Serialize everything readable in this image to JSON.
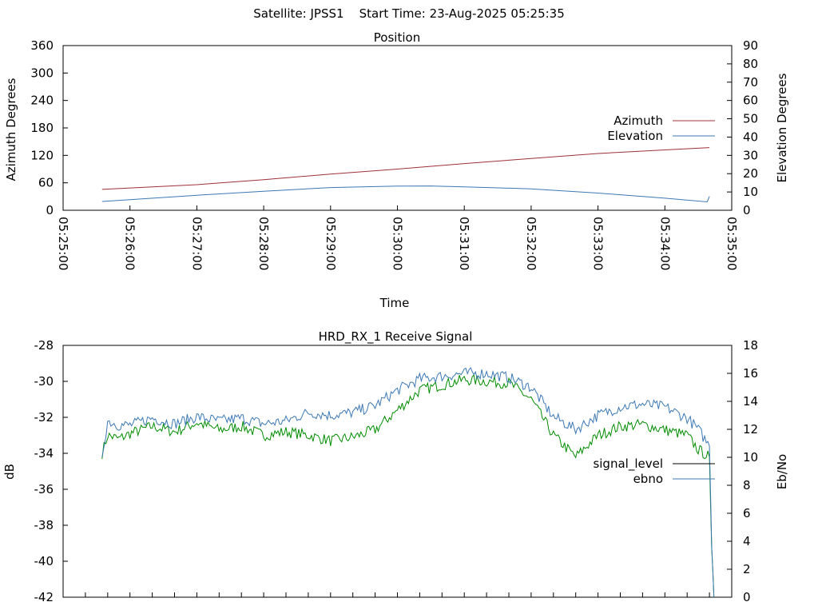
{
  "header": {
    "satellite_label": "Satellite: JPSS1",
    "start_label": "Start Time: 23-Aug-2025 05:25:35"
  },
  "colors": {
    "azimuth": "#a0303a",
    "elevation": "#3c78b4",
    "signal_level": "#008c00",
    "ebno": "#3c78b4"
  },
  "chart_data": [
    {
      "type": "line",
      "title": "Position",
      "xlabel": "Time",
      "ylabel": "Azimuth Degrees",
      "y2label": "Elevation Degrees",
      "xlim": [
        "05:25:00",
        "05:35:00"
      ],
      "ylim": [
        0,
        360
      ],
      "y2lim": [
        0,
        90
      ],
      "x_ticks": [
        "05:25:00",
        "05:26:00",
        "05:27:00",
        "05:28:00",
        "05:29:00",
        "05:30:00",
        "05:31:00",
        "05:32:00",
        "05:33:00",
        "05:34:00",
        "05:35:00"
      ],
      "y_ticks": [
        "0",
        "60",
        "120",
        "180",
        "240",
        "300",
        "360"
      ],
      "y2_ticks": [
        "0",
        "10",
        "20",
        "30",
        "40",
        "50",
        "60",
        "70",
        "80",
        "90"
      ],
      "legend_position": "right",
      "series": [
        {
          "name": "Azimuth",
          "axis": "y",
          "x": [
            "05:25:35",
            "05:27:00",
            "05:28:00",
            "05:29:00",
            "05:30:00",
            "05:31:00",
            "05:32:00",
            "05:33:00",
            "05:34:00",
            "05:34:40"
          ],
          "values": [
            45.6,
            56,
            67,
            79,
            90,
            102,
            113,
            124,
            132,
            137
          ]
        },
        {
          "name": "Elevation",
          "axis": "y2",
          "x": [
            "05:25:35",
            "05:26:00",
            "05:27:00",
            "05:28:00",
            "05:29:00",
            "05:30:00",
            "05:30:30",
            "05:31:00",
            "05:32:00",
            "05:33:00",
            "05:34:00",
            "05:34:38",
            "05:34:40"
          ],
          "values": [
            4.8,
            5.8,
            8.2,
            10.4,
            12.4,
            13.2,
            13.3,
            12.8,
            11.7,
            9.4,
            6.6,
            4.6,
            7.6
          ]
        }
      ]
    },
    {
      "type": "line",
      "title": "HRD_RX_1 Receive Signal",
      "xlabel": "",
      "ylabel": "dB",
      "y2label": "Eb/No",
      "ylim": [
        -42,
        -28
      ],
      "y2lim": [
        0,
        18
      ],
      "y_ticks": [
        "-28",
        "-30",
        "-32",
        "-34",
        "-36",
        "-38",
        "-40",
        "-42"
      ],
      "y2_ticks": [
        "0",
        "2",
        "4",
        "6",
        "8",
        "10",
        "12",
        "14",
        "16",
        "18"
      ],
      "legend_position": "right",
      "series": [
        {
          "name": "signal_level",
          "axis": "y",
          "x": [
            "05:25:35",
            "05:25:40",
            "05:25:50",
            "05:26:00",
            "05:26:20",
            "05:26:40",
            "05:27:00",
            "05:27:20",
            "05:27:40",
            "05:28:00",
            "05:28:20",
            "05:28:40",
            "05:29:00",
            "05:29:20",
            "05:29:40",
            "05:30:00",
            "05:30:20",
            "05:30:40",
            "05:31:00",
            "05:31:20",
            "05:31:40",
            "05:32:00",
            "05:32:20",
            "05:32:40",
            "05:33:00",
            "05:33:20",
            "05:33:40",
            "05:34:00",
            "05:34:20",
            "05:34:30",
            "05:34:40",
            "05:34:42",
            "05:34:44"
          ],
          "values": [
            -34.0,
            -33.0,
            -33.2,
            -32.9,
            -32.5,
            -32.8,
            -32.3,
            -32.7,
            -32.5,
            -33.0,
            -32.8,
            -33.0,
            -33.3,
            -33.1,
            -32.7,
            -31.6,
            -30.5,
            -30.2,
            -29.9,
            -30.0,
            -30.1,
            -31.0,
            -33.0,
            -34.2,
            -33.0,
            -32.5,
            -32.4,
            -32.7,
            -33.0,
            -33.8,
            -34.2,
            -39.5,
            -42.0
          ]
        },
        {
          "name": "ebno",
          "axis": "y2",
          "x": [
            "05:25:35",
            "05:25:40",
            "05:25:50",
            "05:26:00",
            "05:26:20",
            "05:26:40",
            "05:27:00",
            "05:27:20",
            "05:27:40",
            "05:28:00",
            "05:28:20",
            "05:28:40",
            "05:29:00",
            "05:29:20",
            "05:29:40",
            "05:30:00",
            "05:30:20",
            "05:30:40",
            "05:31:00",
            "05:31:20",
            "05:31:40",
            "05:32:00",
            "05:32:20",
            "05:32:40",
            "05:33:00",
            "05:33:20",
            "05:33:40",
            "05:34:00",
            "05:34:20",
            "05:34:30",
            "05:34:40",
            "05:34:42",
            "05:34:44"
          ],
          "values": [
            10.2,
            12.6,
            12.3,
            12.3,
            12.8,
            12.4,
            12.9,
            12.6,
            12.8,
            12.4,
            12.6,
            13.2,
            13.0,
            13.2,
            13.7,
            14.8,
            15.6,
            15.8,
            16.0,
            16.0,
            15.7,
            15.0,
            12.9,
            12.0,
            13.0,
            13.6,
            13.8,
            13.6,
            12.8,
            12.0,
            10.8,
            4.0,
            0.0
          ]
        }
      ]
    }
  ]
}
